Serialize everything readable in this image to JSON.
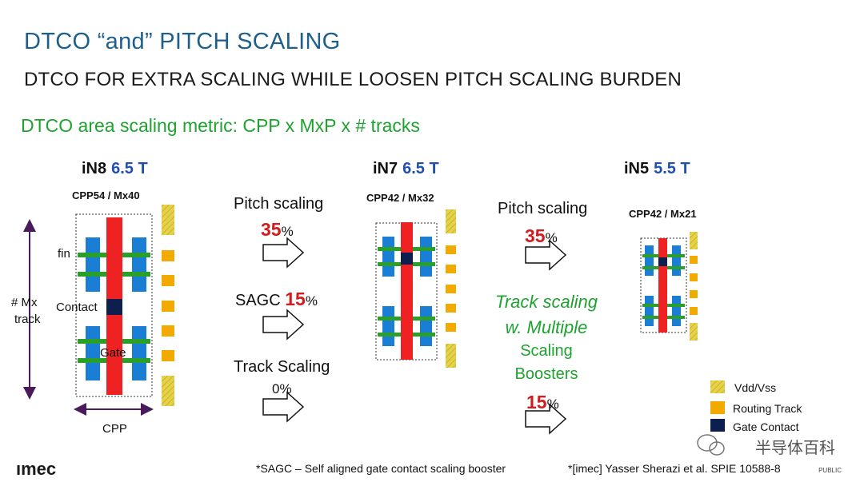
{
  "title": "DTCO “and” PITCH SCALING",
  "subtitle": "DTCO FOR EXTRA SCALING WHILE LOOSEN PITCH SCALING BURDEN",
  "metric": "DTCO area scaling metric: CPP x MxP x # tracks",
  "nodes": [
    {
      "name": "iN8",
      "tracks": "6.5 T",
      "cpp": "CPP54 / Mx40"
    },
    {
      "name": "iN7",
      "tracks": "6.5 T",
      "cpp": "CPP42 / Mx32"
    },
    {
      "name": "iN5",
      "tracks": "5.5 T",
      "cpp": "CPP42 / Mx21"
    }
  ],
  "cell_labels": {
    "fin": "fin",
    "contact": "Contact",
    "gate": "Gate",
    "mx_track_1": "# Mx",
    "mx_track_2": "track",
    "cpp": "CPP"
  },
  "steps1": [
    {
      "label": "Pitch scaling",
      "value": "35",
      "unit": "%"
    },
    {
      "label": "SAGC",
      "value": "15",
      "unit": "%"
    },
    {
      "label": "Track Scaling",
      "value": "0",
      "unit": "%"
    }
  ],
  "steps2": {
    "pitch_label": "Pitch scaling",
    "pitch_value": "35",
    "pitch_unit": "%",
    "track_line1": "Track scaling",
    "track_line2": "w. Multiple",
    "track_line3": "Scaling",
    "track_line4": "Boosters",
    "track_value": "15",
    "track_unit": "%"
  },
  "legend": [
    "Vdd/Vss",
    "Routing Track",
    "Gate Contact"
  ],
  "colors": {
    "gate": "#ee2222",
    "fin": "#2aa02a",
    "active": "#1a7fd4",
    "contact": "#0d1f4f",
    "routing": "#f2a900",
    "vdd": "#e6d24a"
  },
  "footnote1": "*SAGC – Self aligned gate contact scaling booster",
  "footnote2": "*[imec] Yasser Sherazi et al. SPIE 10588-8",
  "logo": "ımec",
  "public": "PUBLIC",
  "watermark": "半导体百科"
}
